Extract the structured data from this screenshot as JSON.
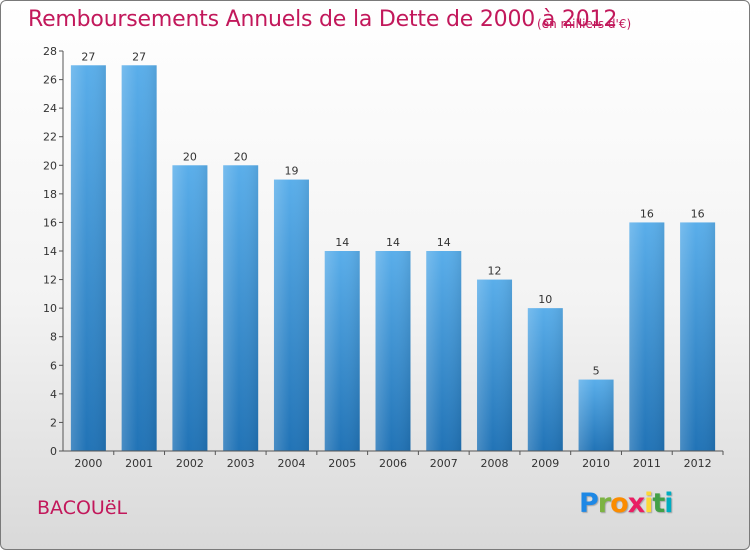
{
  "title": "Remboursements Annuels de la Dette de 2000 à 2012",
  "subtitle": "(en milliers d'€)",
  "commune": "BACOUëL",
  "logo": {
    "text": "Proxiti"
  },
  "colors": {
    "title": "#c2185b",
    "bar_top": "#5aaeea",
    "bar_bottom": "#2173b6",
    "axis": "#555555"
  },
  "chart_data": {
    "type": "bar",
    "categories": [
      "2000",
      "2001",
      "2002",
      "2003",
      "2004",
      "2005",
      "2006",
      "2007",
      "2008",
      "2009",
      "2010",
      "2011",
      "2012"
    ],
    "values": [
      27,
      27,
      20,
      20,
      19,
      14,
      14,
      14,
      12,
      10,
      5,
      16,
      16
    ],
    "ylim": [
      0,
      28
    ],
    "yticks": [
      0,
      2,
      4,
      6,
      8,
      10,
      12,
      14,
      16,
      18,
      20,
      22,
      24,
      26,
      28
    ],
    "grid": false,
    "title": "Remboursements Annuels de la Dette de 2000 à 2012",
    "xlabel": "",
    "ylabel": ""
  }
}
